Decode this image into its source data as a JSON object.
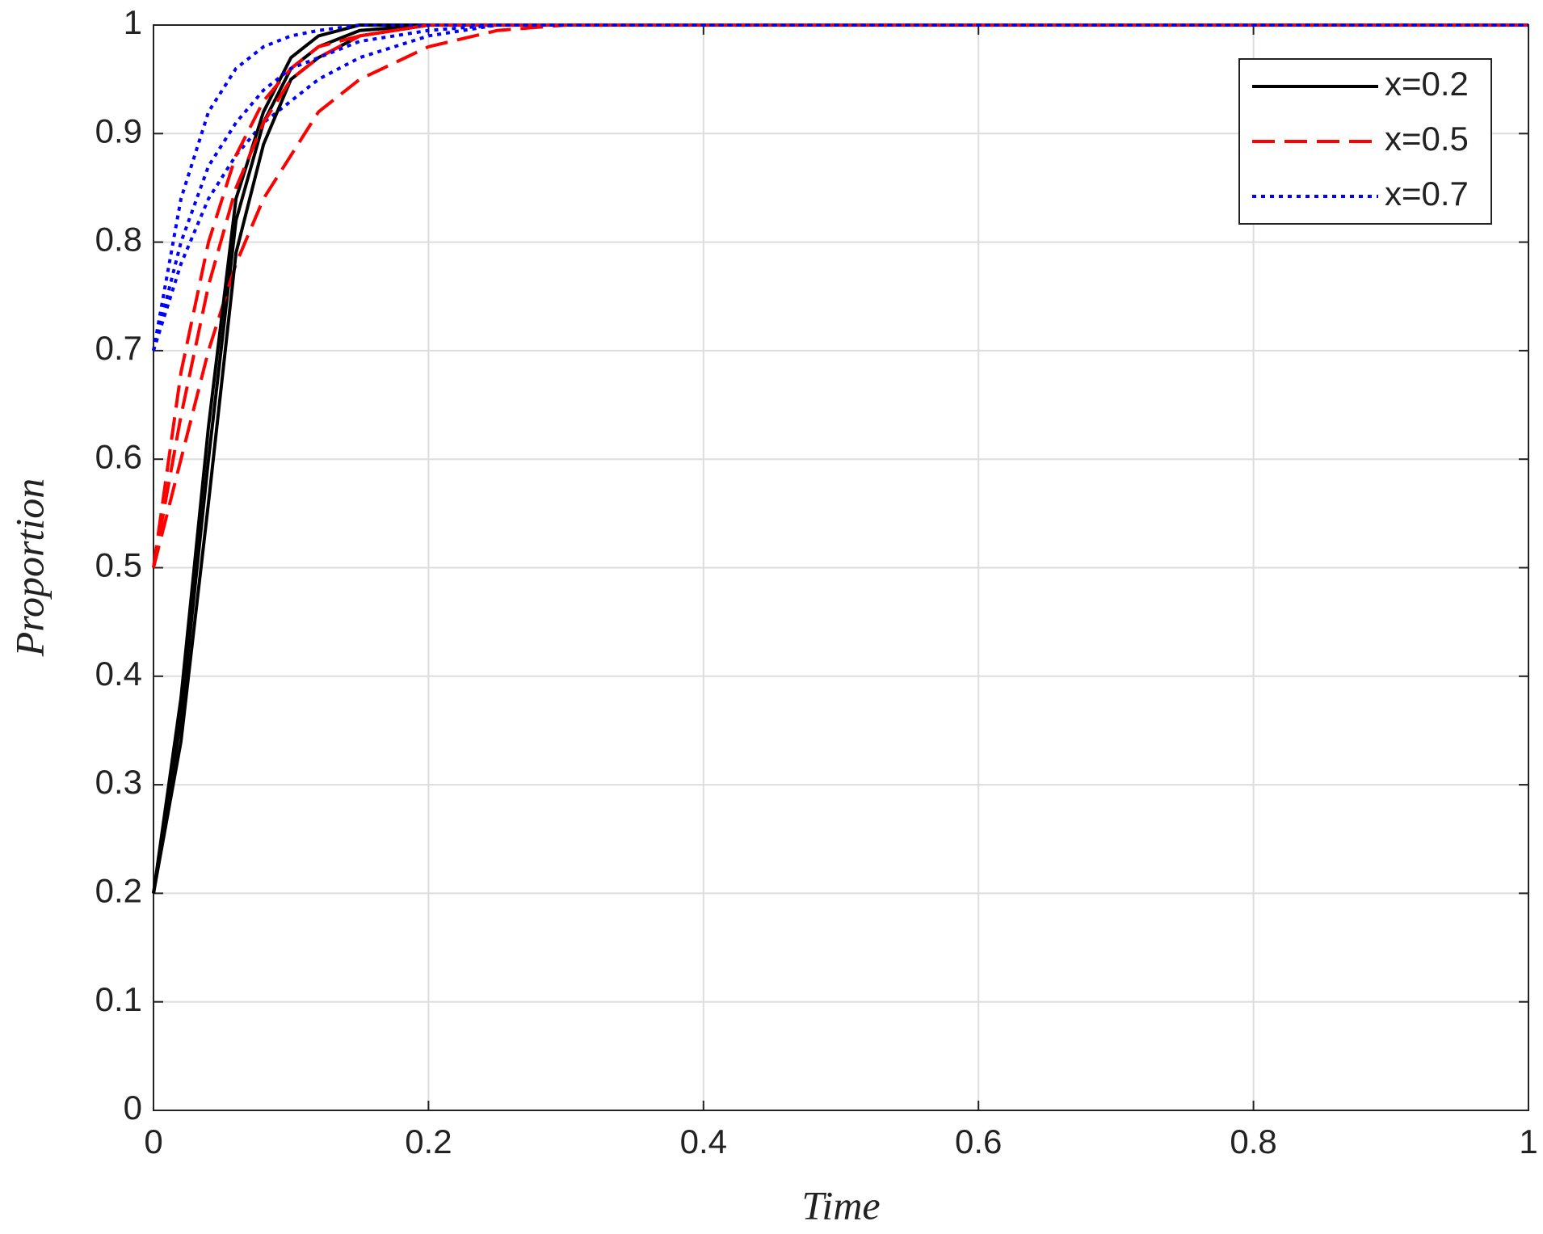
{
  "chart_data": {
    "type": "line",
    "xlabel": "Time",
    "ylabel": "Proportion",
    "x": [
      0,
      0.02,
      0.04,
      0.06,
      0.08,
      0.1,
      0.12,
      0.15,
      0.2,
      0.25,
      0.3,
      0.4,
      0.6,
      0.8,
      1
    ],
    "series": [
      {
        "name": "x=0.2",
        "color": "#000000",
        "linestyle": "solid",
        "values": [
          0.2,
          0.36,
          0.6,
          0.82,
          0.91,
          0.96,
          0.98,
          0.995,
          1,
          1,
          1,
          1,
          1,
          1,
          1
        ]
      },
      {
        "name": "x=0.5",
        "color": "#ff0000",
        "linestyle": "dashed",
        "values": [
          0.5,
          0.6,
          0.7,
          0.78,
          0.84,
          0.88,
          0.92,
          0.95,
          0.98,
          0.995,
          1,
          1,
          1,
          1,
          1
        ]
      },
      {
        "name": "x=0.7",
        "color": "#0000ff",
        "linestyle": "dotted",
        "values": [
          0.7,
          0.78,
          0.84,
          0.88,
          0.91,
          0.93,
          0.95,
          0.97,
          0.99,
          1,
          1,
          1,
          1,
          1,
          1
        ]
      },
      {
        "color": "#000000",
        "linestyle": "solid",
        "values": [
          0.2,
          0.34,
          0.56,
          0.79,
          0.89,
          0.95,
          0.97,
          0.99,
          1,
          1,
          1,
          1,
          1,
          1,
          1
        ]
      },
      {
        "color": "#000000",
        "linestyle": "solid",
        "values": [
          0.2,
          0.38,
          0.63,
          0.84,
          0.92,
          0.97,
          0.99,
          1,
          1,
          1,
          1,
          1,
          1,
          1,
          1
        ]
      },
      {
        "color": "#ff0000",
        "linestyle": "dashed",
        "values": [
          0.5,
          0.68,
          0.8,
          0.88,
          0.93,
          0.96,
          0.98,
          0.99,
          1,
          1,
          1,
          1,
          1,
          1,
          1
        ]
      },
      {
        "color": "#ff0000",
        "linestyle": "dashed",
        "values": [
          0.5,
          0.64,
          0.76,
          0.85,
          0.91,
          0.95,
          0.97,
          0.99,
          1,
          1,
          1,
          1,
          1,
          1,
          1
        ]
      },
      {
        "color": "#0000ff",
        "linestyle": "dotted",
        "values": [
          0.7,
          0.84,
          0.92,
          0.96,
          0.98,
          0.99,
          0.995,
          1,
          1,
          1,
          1,
          1,
          1,
          1,
          1
        ]
      },
      {
        "color": "#0000ff",
        "linestyle": "dotted",
        "values": [
          0.7,
          0.8,
          0.87,
          0.91,
          0.94,
          0.96,
          0.97,
          0.985,
          0.995,
          1,
          1,
          1,
          1,
          1,
          1
        ]
      }
    ],
    "xlim": [
      0,
      1
    ],
    "xticks": [
      0,
      0.2,
      0.4,
      0.6,
      0.8,
      1
    ],
    "ylim": [
      0,
      1
    ],
    "yticks": [
      0,
      0.1,
      0.2,
      0.3,
      0.4,
      0.5,
      0.6,
      0.7,
      0.8,
      0.9,
      1
    ],
    "grid": true,
    "legend": "top-right"
  }
}
